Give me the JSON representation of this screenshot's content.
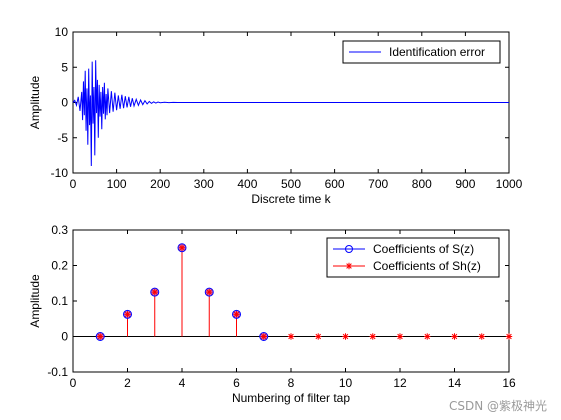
{
  "watermark": "CSDN @紫极神光",
  "chart_data": [
    {
      "type": "line",
      "xlabel": "Discrete time k",
      "ylabel": "Amplitude",
      "xlim": [
        0,
        1000
      ],
      "ylim": [
        -10,
        10
      ],
      "xticks": [
        0,
        100,
        200,
        300,
        400,
        500,
        600,
        700,
        800,
        900,
        1000
      ],
      "yticks": [
        -10,
        -5,
        0,
        5,
        10
      ],
      "legend_position": "top-right",
      "series": [
        {
          "name": "Identification error",
          "color": "#0000ff",
          "x": [
            0,
            4,
            8,
            12,
            16,
            20,
            22,
            24,
            26,
            28,
            30,
            32,
            34,
            36,
            38,
            40,
            42,
            44,
            46,
            48,
            50,
            52,
            54,
            56,
            58,
            60,
            62,
            64,
            66,
            68,
            70,
            72,
            74,
            76,
            78,
            80,
            84,
            88,
            92,
            96,
            100,
            104,
            108,
            112,
            116,
            120,
            124,
            128,
            132,
            136,
            140,
            145,
            150,
            155,
            160,
            165,
            170,
            175,
            180,
            185,
            190,
            195,
            200,
            210,
            220,
            230,
            240,
            250,
            1000
          ],
          "y": [
            0,
            0.3,
            -0.4,
            0.8,
            -1.2,
            1.5,
            -2.5,
            3.0,
            -1.8,
            4.5,
            -4.0,
            2.0,
            -6.0,
            4.8,
            -3.2,
            1.0,
            -9.0,
            5.8,
            -3.0,
            2.2,
            -7.5,
            6.0,
            -1.5,
            3.2,
            -5.0,
            2.5,
            -2.0,
            1.5,
            -3.8,
            2.2,
            -1.6,
            2.8,
            -2.4,
            1.2,
            -1.8,
            2.0,
            -1.5,
            1.6,
            -1.3,
            1.4,
            -1.1,
            1.0,
            -0.9,
            1.1,
            -0.8,
            0.9,
            -0.7,
            0.8,
            -0.6,
            0.6,
            -0.5,
            0.45,
            -0.4,
            0.35,
            -0.3,
            0.25,
            -0.2,
            0.15,
            -0.12,
            0.1,
            -0.08,
            0.06,
            -0.04,
            0.03,
            -0.02,
            0.01,
            0,
            0,
            0
          ]
        }
      ]
    },
    {
      "type": "stem",
      "xlabel": "Numbering of filter tap",
      "ylabel": "Amplitude",
      "xlim": [
        0,
        16
      ],
      "ylim": [
        -0.1,
        0.3
      ],
      "xticks": [
        0,
        2,
        4,
        6,
        8,
        10,
        12,
        14,
        16
      ],
      "yticks": [
        -0.1,
        0,
        0.1,
        0.2,
        0.3
      ],
      "legend_position": "top-right",
      "series": [
        {
          "name": "Coefficients of S(z)",
          "color": "#0000ff",
          "marker": "circle",
          "x": [
            1,
            2,
            3,
            4,
            5,
            6,
            7
          ],
          "values": [
            0,
            0.0625,
            0.125,
            0.25,
            0.125,
            0.0625,
            0
          ]
        },
        {
          "name": "Coefficients of Sh(z)",
          "color": "#ff0000",
          "marker": "star",
          "x": [
            1,
            2,
            3,
            4,
            5,
            6,
            7,
            8,
            9,
            10,
            11,
            12,
            13,
            14,
            15,
            16
          ],
          "values": [
            0,
            0.0625,
            0.125,
            0.25,
            0.125,
            0.0625,
            0,
            0,
            0,
            0,
            0,
            0,
            0,
            0,
            0,
            0
          ]
        }
      ]
    }
  ]
}
